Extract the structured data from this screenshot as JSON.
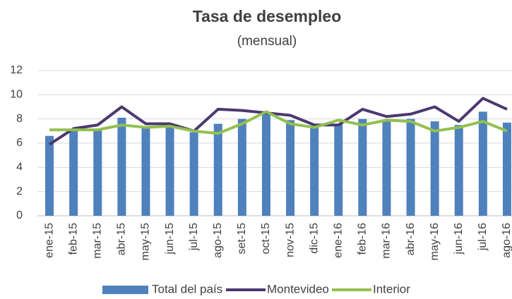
{
  "chart_data": {
    "type": "bar",
    "title": "Tasa de desempleo",
    "subtitle": "(mensual)",
    "categories": [
      "ene-15",
      "feb-15",
      "mar-15",
      "abr-15",
      "may-15",
      "jun-15",
      "jul-15",
      "ago-15",
      "set-15",
      "oct-15",
      "nov-15",
      "dic-15",
      "ene-16",
      "feb-16",
      "mar-16",
      "abr-16",
      "may-16",
      "jun-16",
      "jul-16",
      "ago-16"
    ],
    "series": [
      {
        "name": "Total del país",
        "type": "bar",
        "color": "#4f81bd",
        "values": [
          6.6,
          7.1,
          7.1,
          8.1,
          7.3,
          7.3,
          6.9,
          7.6,
          8.0,
          8.4,
          7.9,
          7.3,
          7.6,
          8.0,
          7.9,
          8.0,
          7.8,
          7.5,
          8.6,
          7.7
        ]
      },
      {
        "name": "Montevideo",
        "type": "line",
        "color": "#4b3870",
        "values": [
          5.9,
          7.2,
          7.5,
          9.0,
          7.6,
          7.6,
          7.0,
          8.8,
          8.7,
          8.5,
          8.3,
          7.5,
          7.5,
          8.8,
          8.2,
          8.4,
          9.0,
          7.8,
          9.7,
          8.8
        ]
      },
      {
        "name": "Interior",
        "type": "line",
        "color": "#92c050",
        "values": [
          7.1,
          7.1,
          7.1,
          7.5,
          7.3,
          7.4,
          7.0,
          6.8,
          7.6,
          8.6,
          7.6,
          7.3,
          7.9,
          7.5,
          7.9,
          7.8,
          7.0,
          7.3,
          7.8,
          7.0
        ]
      }
    ],
    "ylim": [
      0,
      12
    ],
    "yticks": [
      0,
      2,
      4,
      6,
      8,
      10,
      12
    ],
    "grid": true,
    "legend": "bottom"
  }
}
